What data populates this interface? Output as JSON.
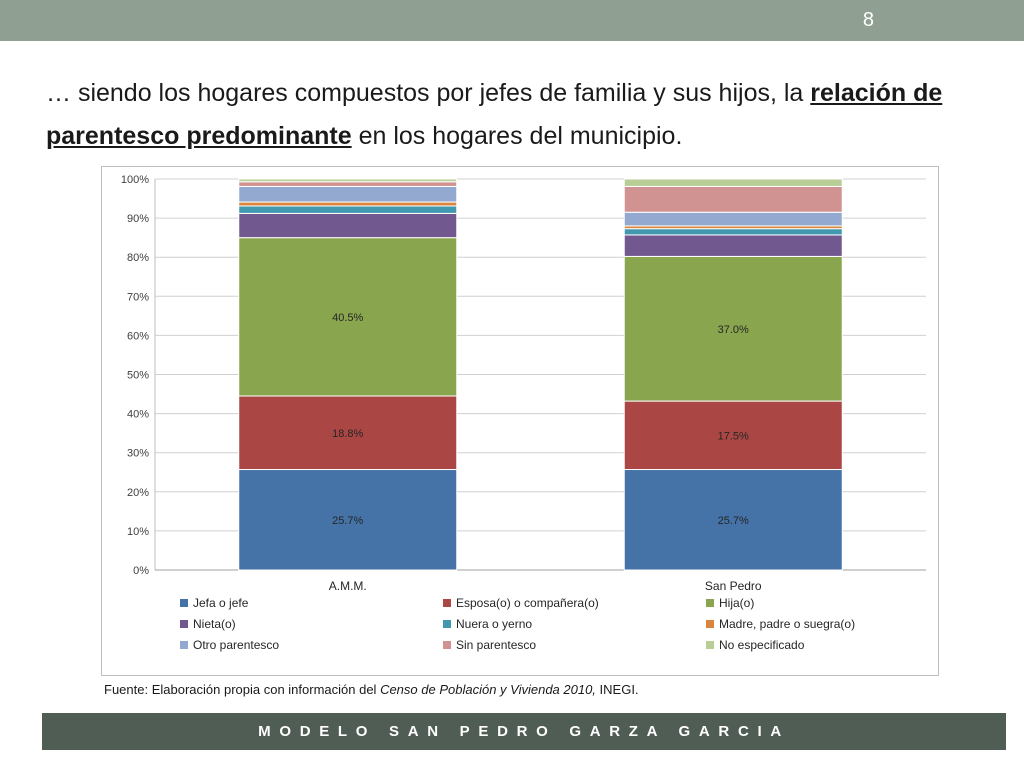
{
  "slide": {
    "number": "8",
    "title_part1": "… siendo los hogares compuestos por jefes de familia y sus hijos, la ",
    "title_bold": "relación de parentesco predominante",
    "title_part2": " en los hogares del municipio.",
    "source_prefix": "Fuente: Elaboración propia con información del ",
    "source_italic": "Censo de Población y Vivienda  2010,",
    "source_suffix": " INEGI.",
    "footer": "MODELO SAN PEDRO GARZA GARCIA"
  },
  "chart_data": {
    "type": "bar",
    "stacked": true,
    "categories": [
      "A.M.M.",
      "San Pedro"
    ],
    "y_ticks": [
      "0%",
      "10%",
      "20%",
      "30%",
      "40%",
      "50%",
      "60%",
      "70%",
      "80%",
      "90%",
      "100%"
    ],
    "ylim": [
      0,
      100
    ],
    "grid": true,
    "legend_position": "bottom",
    "series": [
      {
        "name": "Jefa o jefe",
        "color": "#4572a7",
        "values": [
          25.7,
          25.7
        ],
        "labels": [
          "25.7%",
          "25.7%"
        ]
      },
      {
        "name": "Esposa(o) o compañera(o)",
        "color": "#aa4643",
        "values": [
          18.8,
          17.5
        ],
        "labels": [
          "18.8%",
          "17.5%"
        ]
      },
      {
        "name": "Hija(o)",
        "color": "#89a54e",
        "values": [
          40.5,
          37.0
        ],
        "labels": [
          "40.5%",
          "37.0%"
        ]
      },
      {
        "name": "Nieta(o)",
        "color": "#71588f",
        "values": [
          6.2,
          5.5
        ],
        "labels": [
          "",
          ""
        ]
      },
      {
        "name": "Nuera o yerno",
        "color": "#4198af",
        "values": [
          1.9,
          1.6
        ],
        "labels": [
          "",
          ""
        ]
      },
      {
        "name": "Madre, padre o suegra(o)",
        "color": "#db843d",
        "values": [
          1.0,
          0.7
        ],
        "labels": [
          "",
          ""
        ]
      },
      {
        "name": "Otro parentesco",
        "color": "#93a9cf",
        "values": [
          4.0,
          3.5
        ],
        "labels": [
          "",
          ""
        ]
      },
      {
        "name": "Sin parentesco",
        "color": "#d19392",
        "values": [
          1.2,
          6.6
        ],
        "labels": [
          "",
          ""
        ]
      },
      {
        "name": "No especificado",
        "color": "#b9cd96",
        "values": [
          0.7,
          1.9
        ],
        "labels": [
          "",
          ""
        ]
      }
    ]
  }
}
